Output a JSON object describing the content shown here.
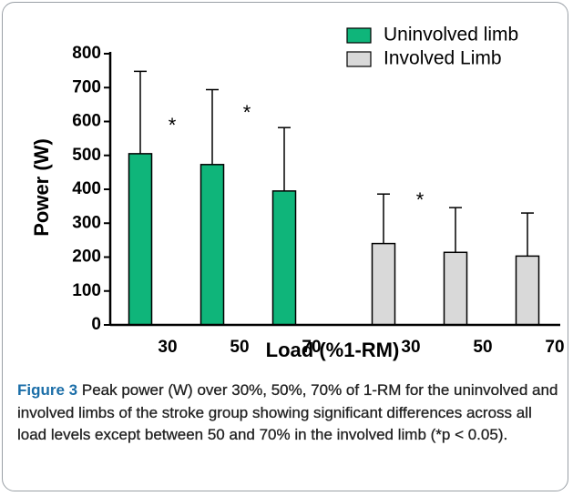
{
  "chart_data": {
    "type": "bar",
    "categories": [
      "30",
      "50",
      "70",
      "30",
      "50",
      "70"
    ],
    "series": [
      {
        "name": "Uninvolved limb",
        "color": "#0fb57a",
        "values": [
          505,
          473,
          395,
          null,
          null,
          null
        ],
        "errors": [
          243,
          221,
          187,
          null,
          null,
          null
        ]
      },
      {
        "name": "Involved Limb",
        "color": "#d9d9d9",
        "values": [
          null,
          null,
          null,
          240,
          214,
          203
        ],
        "errors": [
          null,
          null,
          null,
          146,
          132,
          127
        ]
      }
    ],
    "ylabel": "Power (W)",
    "xlabel": "Load (%1-RM)",
    "ylim": [
      0,
      800
    ],
    "yticks": [
      0,
      100,
      200,
      300,
      400,
      500,
      600,
      700,
      800
    ],
    "legend": "top-right",
    "annotations": [
      "*",
      "*",
      "*"
    ]
  },
  "caption": {
    "label": "Figure 3",
    "text": "Peak power (W) over 30%, 50%, 70% of 1-RM for the uninvolved and involved limbs of the stroke group showing significant differences across all load levels except between 50 and 70% in the involved limb (*p < 0.05)."
  }
}
